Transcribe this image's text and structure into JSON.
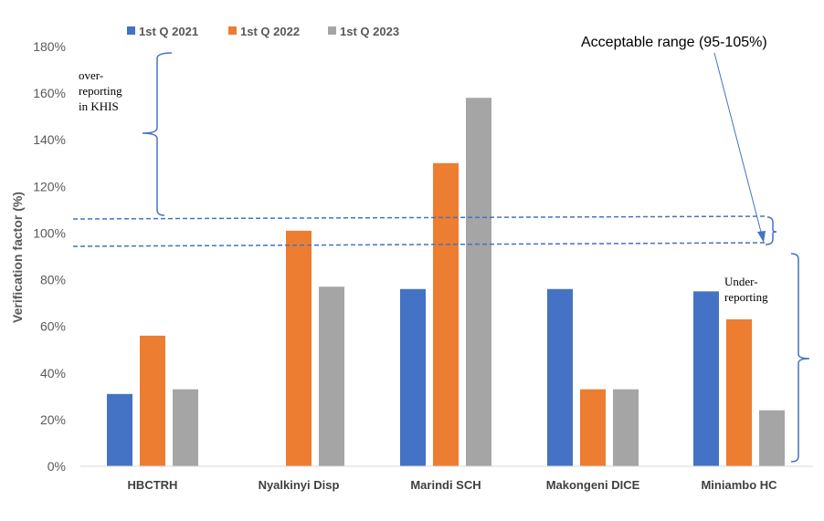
{
  "chart_data": {
    "type": "bar",
    "title": "",
    "xlabel": "",
    "ylabel": "Verification factor (%)",
    "ylim": [
      0,
      180
    ],
    "yticks": [
      "0%",
      "20%",
      "40%",
      "60%",
      "80%",
      "100%",
      "120%",
      "140%",
      "160%",
      "180%"
    ],
    "grid": false,
    "legend_position": "top",
    "categories": [
      "HBCTRH",
      "Nyalkinyi Disp",
      "Marindi SCH",
      "Makongeni DICE",
      "Miniambo HC"
    ],
    "series": [
      {
        "name": "1st Q 2021",
        "color": "#4472C4",
        "values": [
          31,
          null,
          76,
          76,
          75
        ]
      },
      {
        "name": "1st Q 2022",
        "color": "#ED7D31",
        "values": [
          56,
          101,
          130,
          33,
          63
        ]
      },
      {
        "name": "1st Q 2023",
        "color": "#A5A5A5",
        "values": [
          33,
          77,
          158,
          33,
          24
        ]
      }
    ],
    "annotations": {
      "over_reporting": [
        "over-",
        "reporting",
        "in KHIS"
      ],
      "under_reporting": [
        "Under-",
        "reporting"
      ],
      "acceptable_range": "Acceptable range (95-105%)",
      "acceptable_range_bounds": [
        95,
        105
      ],
      "annotation_color": "#4472C4"
    }
  }
}
